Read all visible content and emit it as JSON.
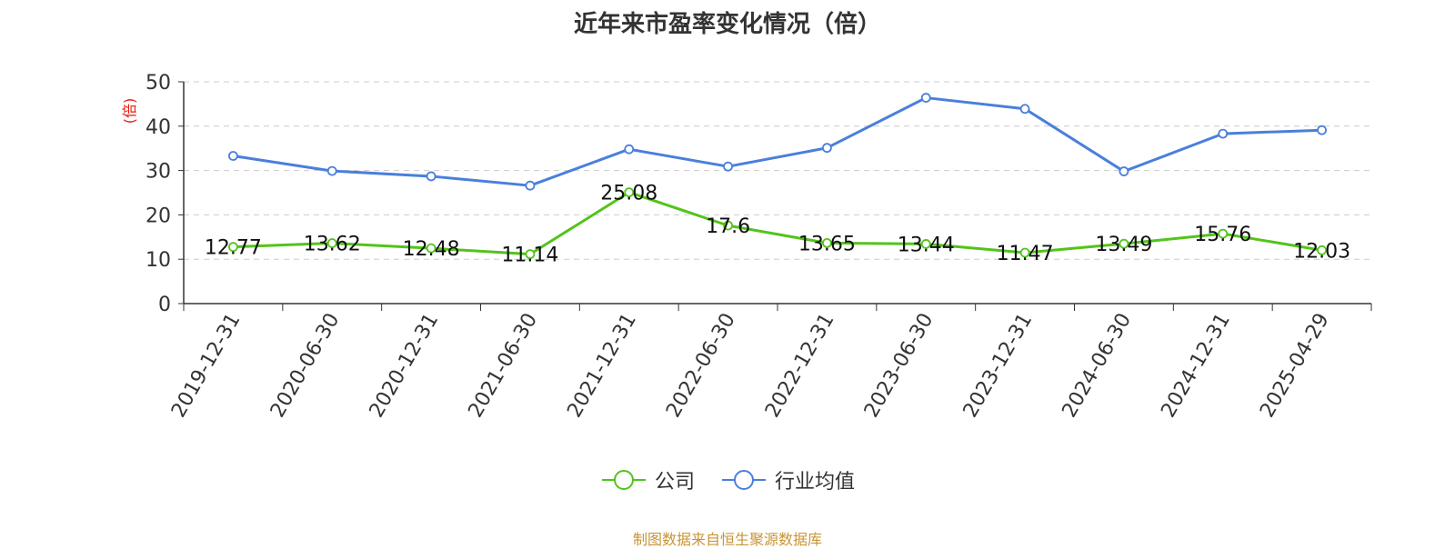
{
  "colors": {
    "company": "#52c41a",
    "industry": "#4a7fdc",
    "grid": "#cccccc",
    "axis": "#333333",
    "ylabel": "#e8180e",
    "source": "#c89536"
  },
  "chart_data": {
    "type": "line",
    "title": "近年来市盈率变化情况（倍）",
    "ylabel": "(倍)",
    "xlabel": "",
    "ylim": [
      0,
      50
    ],
    "yticks": [
      0,
      10,
      20,
      30,
      40,
      50
    ],
    "grid": true,
    "legend_position": "bottom",
    "categories": [
      "2019-12-31",
      "2020-06-30",
      "2020-12-31",
      "2021-06-30",
      "2021-12-31",
      "2022-06-30",
      "2022-12-31",
      "2023-06-30",
      "2023-12-31",
      "2024-06-30",
      "2024-12-31",
      "2025-04-29"
    ],
    "series": [
      {
        "name": "公司",
        "values": [
          12.77,
          13.62,
          12.48,
          11.14,
          25.08,
          17.6,
          13.65,
          13.44,
          11.47,
          13.49,
          15.76,
          12.03
        ],
        "labels": [
          "12.77",
          "13.62",
          "12.48",
          "11.14",
          "25.08",
          "17.6",
          "13.65",
          "13.44",
          "11.47",
          "13.49",
          "15.76",
          "12.03"
        ]
      },
      {
        "name": "行业均值",
        "values": [
          33.3,
          29.9,
          28.7,
          26.6,
          34.8,
          30.9,
          35.1,
          46.4,
          43.9,
          29.8,
          38.3,
          39.1
        ]
      }
    ]
  },
  "source_note": "制图数据来自恒生聚源数据库"
}
